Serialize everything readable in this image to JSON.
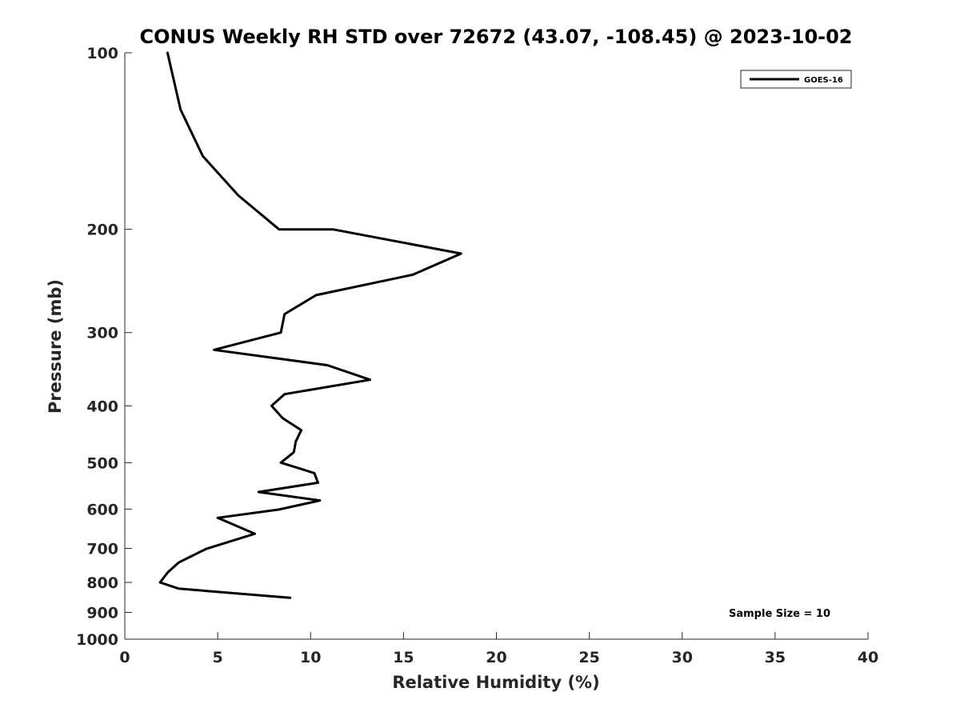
{
  "chart_data": {
    "type": "line",
    "title": "CONUS Weekly RH STD over 72672 (43.07, -108.45) @ 2023-10-02",
    "xlabel": "Relative Humidity (%)",
    "ylabel": "Pressure (mb)",
    "xlim": [
      0,
      40
    ],
    "ylim": [
      100,
      1000
    ],
    "yscale": "log",
    "y_reversed": true,
    "x_ticks": [
      "0",
      "5",
      "10",
      "15",
      "20",
      "25",
      "30",
      "35",
      "40"
    ],
    "y_ticks": [
      "100",
      "200",
      "300",
      "400",
      "500",
      "600",
      "700",
      "800",
      "900",
      "1000"
    ],
    "grid": false,
    "legend_position": "top-right",
    "annotation": "Sample Size = 10",
    "series": [
      {
        "name": "GOES-16",
        "color": "#000000",
        "points": [
          [
            2.3,
            100
          ],
          [
            3.0,
            125
          ],
          [
            4.2,
            150
          ],
          [
            6.1,
            175
          ],
          [
            8.3,
            200
          ],
          [
            11.2,
            200
          ],
          [
            18.1,
            220
          ],
          [
            15.5,
            239
          ],
          [
            10.3,
            259
          ],
          [
            8.6,
            279
          ],
          [
            8.4,
            300
          ],
          [
            4.8,
            321
          ],
          [
            10.9,
            341
          ],
          [
            13.2,
            361
          ],
          [
            8.6,
            382
          ],
          [
            7.9,
            400
          ],
          [
            8.5,
            420
          ],
          [
            9.5,
            440
          ],
          [
            9.2,
            460
          ],
          [
            9.1,
            480
          ],
          [
            8.4,
            500
          ],
          [
            10.2,
            521
          ],
          [
            10.4,
            541
          ],
          [
            7.2,
            561
          ],
          [
            10.5,
            580
          ],
          [
            8.3,
            601
          ],
          [
            5.0,
            621
          ],
          [
            7.0,
            661
          ],
          [
            4.4,
            701
          ],
          [
            2.9,
            740
          ],
          [
            2.3,
            770
          ],
          [
            1.9,
            800
          ],
          [
            2.9,
            820
          ],
          [
            8.9,
            850
          ]
        ]
      }
    ]
  }
}
